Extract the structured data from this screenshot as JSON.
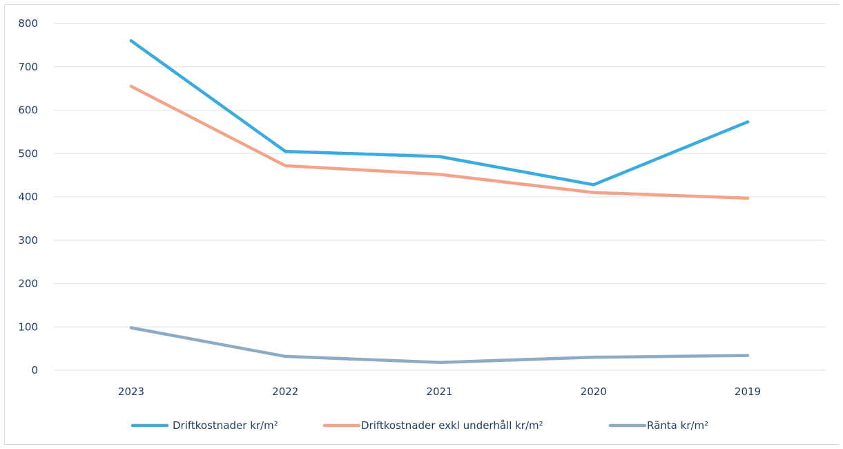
{
  "chart_data": {
    "type": "line",
    "title": "",
    "xlabel": "",
    "ylabel": "",
    "categories": [
      "2023",
      "2022",
      "2021",
      "2020",
      "2019"
    ],
    "ylim": [
      0,
      800
    ],
    "yticks": [
      0,
      100,
      200,
      300,
      400,
      500,
      600,
      700,
      800
    ],
    "grid": true,
    "legend_position": "bottom",
    "series": [
      {
        "name": "Driftkostnader kr/m²",
        "color": "#3aabdf",
        "values": [
          760,
          505,
          493,
          428,
          573
        ]
      },
      {
        "name": "Driftkostnader exkl underhåll kr/m²",
        "color": "#f2a389",
        "values": [
          655,
          472,
          452,
          410,
          397
        ]
      },
      {
        "name": "Ränta kr/m²",
        "color": "#8faac3",
        "values": [
          98,
          32,
          18,
          30,
          34
        ]
      }
    ]
  }
}
